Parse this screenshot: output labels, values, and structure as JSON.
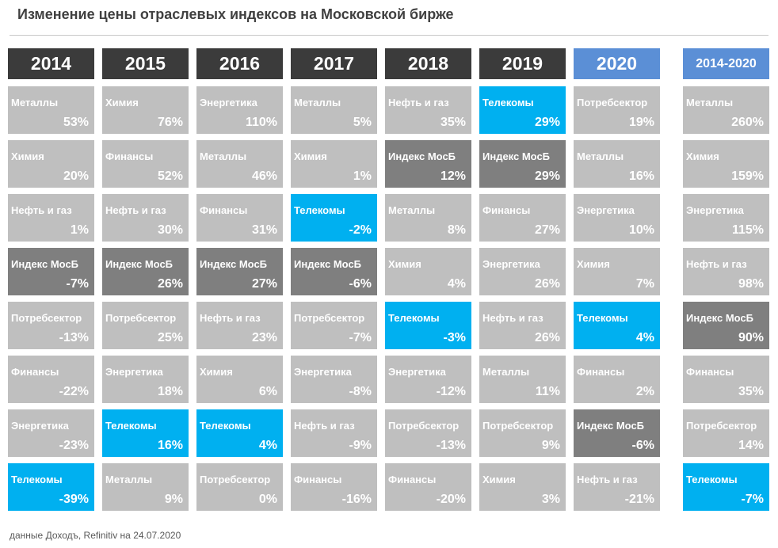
{
  "title": "Изменение цены отраслевых индексов на Московской бирже",
  "footer": "данные Доходъ, Refinitiv на 24.07.2020",
  "colors": {
    "header": "#3b3b3b",
    "header_current": "#5b8fd6",
    "cell": "#bfbfbf",
    "telecom": "#00b0f0",
    "index": "#7f7f7f"
  },
  "chart_data": {
    "type": "table",
    "title": "Изменение цены отраслевых индексов на Московской бирже",
    "columns": [
      {
        "year": "2014",
        "style": "normal",
        "cells": [
          {
            "name": "Металлы",
            "value": "53%"
          },
          {
            "name": "Химия",
            "value": "20%"
          },
          {
            "name": "Нефть и газ",
            "value": "1%"
          },
          {
            "name": "Индекс МосБ",
            "value": "-7%"
          },
          {
            "name": "Потребсектор",
            "value": "-13%"
          },
          {
            "name": "Финансы",
            "value": "-22%"
          },
          {
            "name": "Энергетика",
            "value": "-23%"
          },
          {
            "name": "Телекомы",
            "value": "-39%"
          }
        ]
      },
      {
        "year": "2015",
        "style": "normal",
        "cells": [
          {
            "name": "Химия",
            "value": "76%"
          },
          {
            "name": "Финансы",
            "value": "52%"
          },
          {
            "name": "Нефть и газ",
            "value": "30%"
          },
          {
            "name": "Индекс МосБ",
            "value": "26%"
          },
          {
            "name": "Потребсектор",
            "value": "25%"
          },
          {
            "name": "Энергетика",
            "value": "18%"
          },
          {
            "name": "Телекомы",
            "value": "16%"
          },
          {
            "name": "Металлы",
            "value": "9%"
          }
        ]
      },
      {
        "year": "2016",
        "style": "normal",
        "cells": [
          {
            "name": "Энергетика",
            "value": "110%"
          },
          {
            "name": "Металлы",
            "value": "46%"
          },
          {
            "name": "Финансы",
            "value": "31%"
          },
          {
            "name": "Индекс МосБ",
            "value": "27%"
          },
          {
            "name": "Нефть и газ",
            "value": "23%"
          },
          {
            "name": "Химия",
            "value": "6%"
          },
          {
            "name": "Телекомы",
            "value": "4%"
          },
          {
            "name": "Потребсектор",
            "value": "0%"
          }
        ]
      },
      {
        "year": "2017",
        "style": "normal",
        "cells": [
          {
            "name": "Металлы",
            "value": "5%"
          },
          {
            "name": "Химия",
            "value": "1%"
          },
          {
            "name": "Телекомы",
            "value": "-2%"
          },
          {
            "name": "Индекс МосБ",
            "value": "-6%"
          },
          {
            "name": "Потребсектор",
            "value": "-7%"
          },
          {
            "name": "Энергетика",
            "value": "-8%"
          },
          {
            "name": "Нефть и газ",
            "value": "-9%"
          },
          {
            "name": "Финансы",
            "value": "-16%"
          }
        ]
      },
      {
        "year": "2018",
        "style": "normal",
        "cells": [
          {
            "name": "Нефть и газ",
            "value": "35%"
          },
          {
            "name": "Индекс МосБ",
            "value": "12%"
          },
          {
            "name": "Металлы",
            "value": "8%"
          },
          {
            "name": "Химия",
            "value": "4%"
          },
          {
            "name": "Телекомы",
            "value": "-3%"
          },
          {
            "name": "Энергетика",
            "value": "-12%"
          },
          {
            "name": "Потребсектор",
            "value": "-13%"
          },
          {
            "name": "Финансы",
            "value": "-20%"
          }
        ]
      },
      {
        "year": "2019",
        "style": "normal",
        "cells": [
          {
            "name": "Телекомы",
            "value": "29%"
          },
          {
            "name": "Индекс МосБ",
            "value": "29%"
          },
          {
            "name": "Финансы",
            "value": "27%"
          },
          {
            "name": "Энергетика",
            "value": "26%"
          },
          {
            "name": "Нефть и газ",
            "value": "26%"
          },
          {
            "name": "Металлы",
            "value": "11%"
          },
          {
            "name": "Потребсектор",
            "value": "9%"
          },
          {
            "name": "Химия",
            "value": "3%"
          }
        ]
      },
      {
        "year": "2020",
        "style": "current",
        "cells": [
          {
            "name": "Потребсектор",
            "value": "19%"
          },
          {
            "name": "Металлы",
            "value": "16%"
          },
          {
            "name": "Энергетика",
            "value": "10%"
          },
          {
            "name": "Химия",
            "value": "7%"
          },
          {
            "name": "Телекомы",
            "value": "4%"
          },
          {
            "name": "Финансы",
            "value": "2%"
          },
          {
            "name": "Индекс МосБ",
            "value": "-6%"
          },
          {
            "name": "Нефть и газ",
            "value": "-21%"
          }
        ]
      },
      {
        "year": "2014-2020",
        "style": "total",
        "cells": [
          {
            "name": "Металлы",
            "value": "260%"
          },
          {
            "name": "Химия",
            "value": "159%"
          },
          {
            "name": "Энергетика",
            "value": "115%"
          },
          {
            "name": "Нефть и газ",
            "value": "98%"
          },
          {
            "name": "Индекс МосБ",
            "value": "90%"
          },
          {
            "name": "Финансы",
            "value": "35%"
          },
          {
            "name": "Потребсектор",
            "value": "14%"
          },
          {
            "name": "Телекомы",
            "value": "-7%"
          }
        ]
      }
    ]
  }
}
